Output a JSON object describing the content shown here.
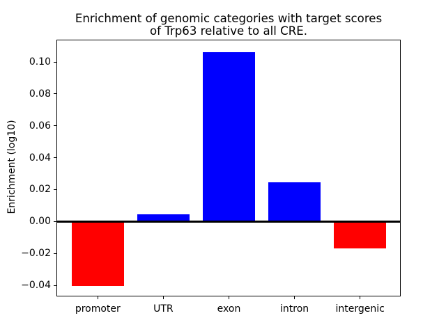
{
  "title": {
    "line1": "Enrichment of genomic categories with target scores",
    "line2": "of Trp63 relative to all CRE."
  },
  "chart_data": {
    "type": "bar",
    "title": "Enrichment of genomic categories with target scores\nof Trp63 relative to all CRE.",
    "xlabel": "",
    "ylabel": "Enrichment (log10)",
    "categories": [
      "promoter",
      "UTR",
      "exon",
      "intron",
      "intergenic"
    ],
    "values": [
      -0.0403,
      0.0043,
      0.1062,
      0.0244,
      -0.0167
    ],
    "bar_colors": [
      "#ff0000",
      "#0000ff",
      "#0000ff",
      "#0000ff",
      "#ff0000"
    ],
    "positive_color": "#0000ff",
    "negative_color": "#ff0000",
    "bar_width": 0.8,
    "xlim": [
      -0.63,
      4.62
    ],
    "ylim": [
      -0.047,
      0.114
    ],
    "yticks": [
      -0.04,
      -0.02,
      0.0,
      0.02,
      0.04,
      0.06,
      0.08,
      0.1
    ],
    "ytick_labels": [
      "−0.04",
      "−0.02",
      "0.00",
      "0.02",
      "0.04",
      "0.06",
      "0.08",
      "0.10"
    ],
    "zero_line": true,
    "grid": false,
    "legend": null
  },
  "colors": {
    "background": "#ffffff",
    "axis": "#000000",
    "text": "#000000"
  }
}
